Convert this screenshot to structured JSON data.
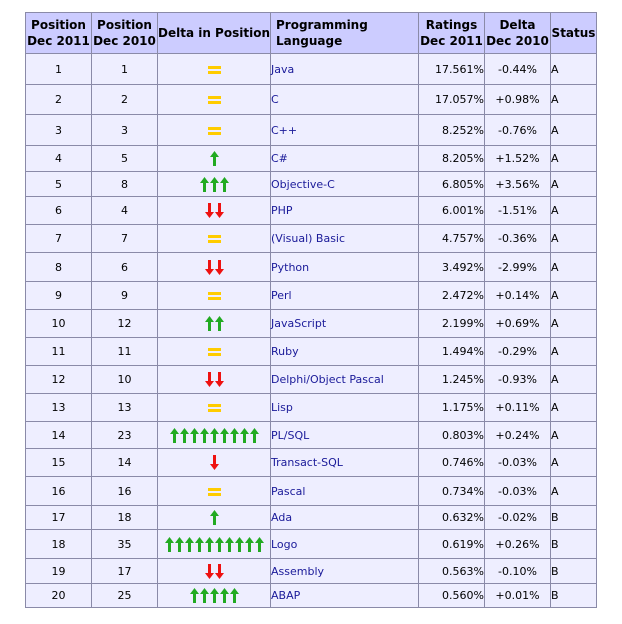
{
  "headers": {
    "pos_2011": [
      "Position",
      "Dec 2011"
    ],
    "pos_2010": [
      "Position",
      "Dec 2010"
    ],
    "delta": "Delta in Position",
    "language": "Programming Language",
    "ratings": [
      "Ratings",
      "Dec 2011"
    ],
    "delta_ratings": [
      "Delta",
      "Dec 2010"
    ],
    "status": "Status"
  },
  "rows": [
    {
      "pos2011": "1",
      "pos2010": "1",
      "trend": "same",
      "count": 1,
      "language": "Java",
      "rating": "17.561%",
      "delta": "-0.44%",
      "status": "A"
    },
    {
      "pos2011": "2",
      "pos2010": "2",
      "trend": "same",
      "count": 1,
      "language": "C",
      "rating": "17.057%",
      "delta": "+0.98%",
      "status": "A"
    },
    {
      "pos2011": "3",
      "pos2010": "3",
      "trend": "same",
      "count": 1,
      "language": "C++",
      "rating": "8.252%",
      "delta": "-0.76%",
      "status": "A"
    },
    {
      "pos2011": "4",
      "pos2010": "5",
      "trend": "up",
      "count": 1,
      "language": "C#",
      "rating": "8.205%",
      "delta": "+1.52%",
      "status": "A"
    },
    {
      "pos2011": "5",
      "pos2010": "8",
      "trend": "up",
      "count": 3,
      "language": "Objective-C",
      "rating": "6.805%",
      "delta": "+3.56%",
      "status": "A"
    },
    {
      "pos2011": "6",
      "pos2010": "4",
      "trend": "down",
      "count": 2,
      "language": "PHP",
      "rating": "6.001%",
      "delta": "-1.51%",
      "status": "A"
    },
    {
      "pos2011": "7",
      "pos2010": "7",
      "trend": "same",
      "count": 1,
      "language": "(Visual) Basic",
      "rating": "4.757%",
      "delta": "-0.36%",
      "status": "A"
    },
    {
      "pos2011": "8",
      "pos2010": "6",
      "trend": "down",
      "count": 2,
      "language": "Python",
      "rating": "3.492%",
      "delta": "-2.99%",
      "status": "A"
    },
    {
      "pos2011": "9",
      "pos2010": "9",
      "trend": "same",
      "count": 1,
      "language": "Perl",
      "rating": "2.472%",
      "delta": "+0.14%",
      "status": "A"
    },
    {
      "pos2011": "10",
      "pos2010": "12",
      "trend": "up",
      "count": 2,
      "language": "JavaScript",
      "rating": "2.199%",
      "delta": "+0.69%",
      "status": "A"
    },
    {
      "pos2011": "11",
      "pos2010": "11",
      "trend": "same",
      "count": 1,
      "language": "Ruby",
      "rating": "1.494%",
      "delta": "-0.29%",
      "status": "A"
    },
    {
      "pos2011": "12",
      "pos2010": "10",
      "trend": "down",
      "count": 2,
      "language": "Delphi/Object Pascal",
      "rating": "1.245%",
      "delta": "-0.93%",
      "status": "A"
    },
    {
      "pos2011": "13",
      "pos2010": "13",
      "trend": "same",
      "count": 1,
      "language": "Lisp",
      "rating": "1.175%",
      "delta": "+0.11%",
      "status": "A"
    },
    {
      "pos2011": "14",
      "pos2010": "23",
      "trend": "up",
      "count": 9,
      "language": "PL/SQL",
      "rating": "0.803%",
      "delta": "+0.24%",
      "status": "A"
    },
    {
      "pos2011": "15",
      "pos2010": "14",
      "trend": "down",
      "count": 1,
      "language": "Transact-SQL",
      "rating": "0.746%",
      "delta": "-0.03%",
      "status": "A"
    },
    {
      "pos2011": "16",
      "pos2010": "16",
      "trend": "same",
      "count": 1,
      "language": "Pascal",
      "rating": "0.734%",
      "delta": "-0.03%",
      "status": "A"
    },
    {
      "pos2011": "17",
      "pos2010": "18",
      "trend": "up",
      "count": 1,
      "language": "Ada",
      "rating": "0.632%",
      "delta": "-0.02%",
      "status": "B"
    },
    {
      "pos2011": "18",
      "pos2010": "35",
      "trend": "up",
      "count": 10,
      "language": "Logo",
      "rating": "0.619%",
      "delta": "+0.26%",
      "status": "B"
    },
    {
      "pos2011": "19",
      "pos2010": "17",
      "trend": "down",
      "count": 2,
      "language": "Assembly",
      "rating": "0.563%",
      "delta": "-0.10%",
      "status": "B"
    },
    {
      "pos2011": "20",
      "pos2010": "25",
      "trend": "up",
      "count": 5,
      "language": "ABAP",
      "rating": "0.560%",
      "delta": "+0.01%",
      "status": "B"
    }
  ],
  "colors": {
    "header_bg": "#ccccff",
    "row_bg": "#eeeeff",
    "border": "#8a8aa8",
    "language_text": "#1a1a99",
    "up_arrow": "#22aa22",
    "down_arrow": "#ee1111",
    "same_marker": "#ffcc00"
  },
  "icons": {
    "up": "green-up-arrow-icon",
    "down": "red-down-arrow-icon",
    "same": "yellow-equals-icon"
  }
}
